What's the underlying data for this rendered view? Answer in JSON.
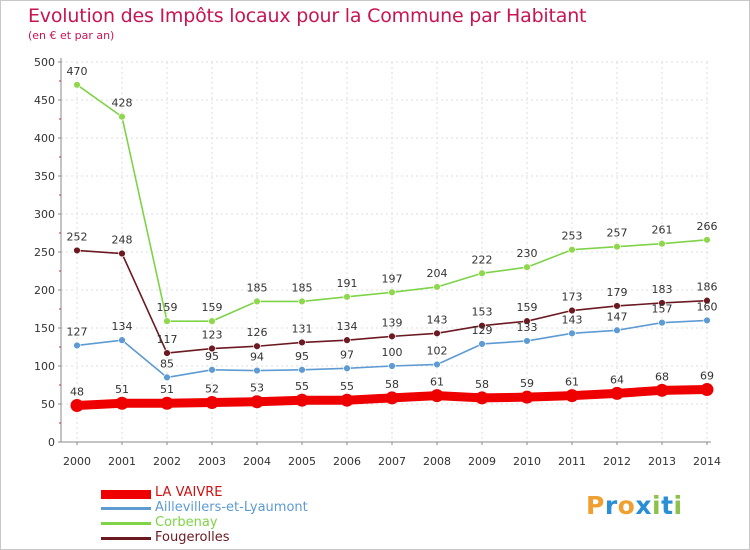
{
  "chart_data": {
    "type": "line",
    "title": "Evolution des Impôts locaux pour la Commune par Habitant",
    "subtitle": "(en € et par an)",
    "xlabel": "",
    "ylabel": "",
    "categories": [
      "2000",
      "2001",
      "2002",
      "2003",
      "2004",
      "2005",
      "2006",
      "2007",
      "2008",
      "2009",
      "2010",
      "2011",
      "2012",
      "2013",
      "2014"
    ],
    "ylim": [
      0,
      500
    ],
    "yticks": [
      0,
      50,
      100,
      150,
      200,
      250,
      300,
      350,
      400,
      450,
      500
    ],
    "grid": true,
    "legend_position": "bottom-left",
    "series": [
      {
        "name": "Corbenay",
        "color": "#7ed348",
        "marker": "#8fd84e",
        "emphasis": false,
        "values": [
          470,
          428,
          159,
          159,
          185,
          185,
          191,
          197,
          204,
          222,
          230,
          253,
          257,
          261,
          266
        ]
      },
      {
        "name": "Fougerolles",
        "color": "#6b1a22",
        "marker": "#6b1a22",
        "emphasis": false,
        "values": [
          252,
          248,
          117,
          123,
          126,
          131,
          134,
          139,
          143,
          153,
          159,
          173,
          179,
          183,
          186
        ]
      },
      {
        "name": "Aillevillers-et-Lyaumont",
        "color": "#5d9bd2",
        "marker": "#5d9bd2",
        "emphasis": false,
        "values": [
          127,
          134,
          85,
          95,
          94,
          95,
          97,
          100,
          102,
          129,
          133,
          143,
          147,
          157,
          160
        ]
      },
      {
        "name": "LA VAIVRE",
        "color": "#ee0000",
        "marker": "#ee0000",
        "emphasis": true,
        "values": [
          48,
          51,
          51,
          52,
          53,
          55,
          55,
          58,
          61,
          58,
          59,
          61,
          64,
          68,
          69
        ]
      }
    ],
    "legend_order": [
      "LA VAIVRE",
      "Aillevillers-et-Lyaumont",
      "Corbenay",
      "Fougerolles"
    ]
  },
  "logo": {
    "text": "Proxiti",
    "letters": [
      "P",
      "r",
      "o",
      "x",
      "i",
      "t",
      "i"
    ],
    "colors": [
      "#f0a030",
      "#2b8fd6",
      "#f0a030",
      "#2b8fd6",
      "#8bc34a",
      "#2b8fd6",
      "#8bc34a"
    ]
  }
}
